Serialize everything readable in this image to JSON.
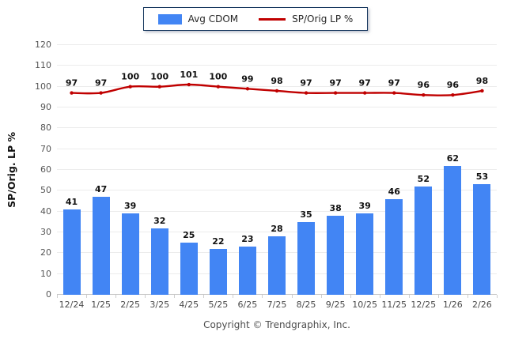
{
  "legend": {
    "items": [
      {
        "label": "Avg CDOM",
        "type": "bar",
        "color": "#4285F4"
      },
      {
        "label": "SP/Orig LP %",
        "type": "line",
        "color": "#C00000"
      }
    ]
  },
  "footer": {
    "copyright": "Copyright © Trendgraphix, Inc."
  },
  "chart_data": {
    "type": "bar",
    "combo": "bar+line",
    "title": "",
    "xlabel": "",
    "ylabel": "SP/Orig. LP %",
    "ylim": [
      0,
      120
    ],
    "ytick_step": 10,
    "grid": true,
    "legend_position": "top-center",
    "categories": [
      "12/24",
      "1/25",
      "2/25",
      "3/25",
      "4/25",
      "5/25",
      "6/25",
      "7/25",
      "8/25",
      "9/25",
      "10/25",
      "11/25",
      "12/25",
      "1/26",
      "2/26"
    ],
    "series": [
      {
        "name": "Avg CDOM",
        "type": "bar",
        "color": "#4285F4",
        "values": [
          41,
          47,
          39,
          32,
          25,
          22,
          23,
          28,
          35,
          38,
          39,
          46,
          52,
          62,
          53
        ]
      },
      {
        "name": "SP/Orig LP %",
        "type": "line",
        "color": "#C00000",
        "values": [
          97,
          97,
          100,
          100,
          101,
          100,
          99,
          98,
          97,
          97,
          97,
          97,
          96,
          96,
          98
        ]
      }
    ],
    "colors": {
      "grid": "#ECECEC",
      "baseline": "#C6C6C6",
      "tick_text": "#555555",
      "value_label": "#111111"
    }
  }
}
